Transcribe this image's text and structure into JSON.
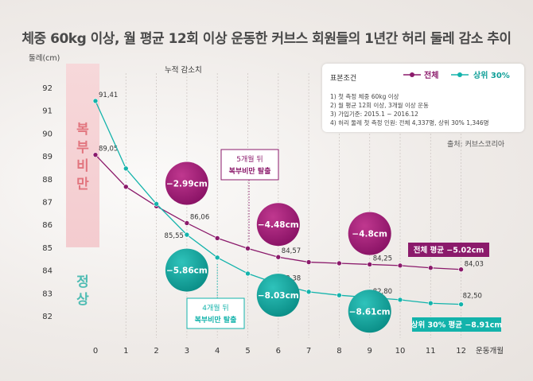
{
  "info": {
    "heading": "표본조건",
    "lines": [
      "1) 첫 측정 체중 60kg 이상",
      "2) 월 평균 12회 이상, 3개월 이상 운동",
      "3) 가입기준: 2015.1 ~ 2016.12",
      "4) 허리 둘레 첫 측정 인원: 전체 4,337명, 상위 30% 1,346명"
    ],
    "source": "출처: 커브스코리아"
  },
  "colors": {
    "total": "#8b1a6b",
    "top30": "#13b3ab",
    "obese_zone": "#f5cfd3",
    "normal_zone": "#cdebe9"
  },
  "chart_data": {
    "type": "line",
    "title": "체중 60kg 이상, 월 평균 12회 이상 운동한 커브스 회원들의 1년간 허리 둘레 감소 추이",
    "xlabel": "운동개월",
    "ylabel": "둘레(cm)",
    "x": [
      0,
      1,
      2,
      3,
      4,
      5,
      6,
      7,
      8,
      9,
      10,
      11,
      12
    ],
    "xlim": [
      0,
      12
    ],
    "ylim": [
      82,
      92
    ],
    "yticks": [
      82,
      83,
      84,
      85,
      86,
      87,
      88,
      89,
      90,
      91,
      92
    ],
    "grid": "vertical dotted",
    "legend": "top-right",
    "series": [
      {
        "name": "전체",
        "values": [
          89.05,
          87.65,
          86.8,
          86.06,
          85.4,
          84.95,
          84.57,
          84.35,
          84.3,
          84.25,
          84.2,
          84.1,
          84.03
        ],
        "labels": [
          {
            "x": 0,
            "text": "89,05"
          },
          {
            "x": 3,
            "text": "86,06"
          },
          {
            "x": 6,
            "text": "84,57"
          },
          {
            "x": 9,
            "text": "84,25"
          },
          {
            "x": 12,
            "text": "84,03"
          }
        ]
      },
      {
        "name": "상위 30%",
        "values": [
          91.41,
          88.45,
          86.9,
          85.55,
          84.55,
          83.85,
          83.38,
          83.05,
          82.9,
          82.8,
          82.7,
          82.55,
          82.5
        ],
        "labels": [
          {
            "x": 0,
            "text": "91,41"
          },
          {
            "x": 3,
            "text": "85,55"
          },
          {
            "x": 6,
            "text": "83,38"
          },
          {
            "x": 9,
            "text": "82,80"
          },
          {
            "x": 12,
            "text": "82,50"
          }
        ]
      }
    ],
    "zones": [
      {
        "label": "복부비만",
        "from": 85,
        "to": 92,
        "color": "#f5cfd3"
      },
      {
        "label": "정상",
        "from": 82,
        "to": 85,
        "color": "#cdebe9"
      }
    ],
    "annotations": {
      "cumulative_label": "누적 감소치",
      "bubbles": [
        {
          "series": "total",
          "text": "−2.99cm",
          "x": 3.0,
          "y": 87.8
        },
        {
          "series": "total",
          "text": "−4.48cm",
          "x": 6.0,
          "y": 86.0
        },
        {
          "series": "total",
          "text": "−4.8cm",
          "x": 9.0,
          "y": 85.6
        },
        {
          "series": "top30",
          "text": "−5.86cm",
          "x": 3.0,
          "y": 84.0
        },
        {
          "series": "top30",
          "text": "−8.03cm",
          "x": 6.0,
          "y": 82.9
        },
        {
          "series": "top30",
          "text": "−8.61cm",
          "x": 9.0,
          "y": 82.2
        }
      ],
      "callouts": [
        {
          "series": "total",
          "x": 5,
          "lines": [
            "5개월 뒤",
            "복부비만 탈출"
          ]
        },
        {
          "series": "top30",
          "x": 4,
          "lines": [
            "4개월 뒤",
            "복부비만 탈출"
          ]
        }
      ],
      "averages": [
        {
          "series": "total",
          "text": "전체 평균 −5.02cm"
        },
        {
          "series": "top30",
          "text": "상위 30% 평균 −8.91cm"
        }
      ]
    }
  }
}
